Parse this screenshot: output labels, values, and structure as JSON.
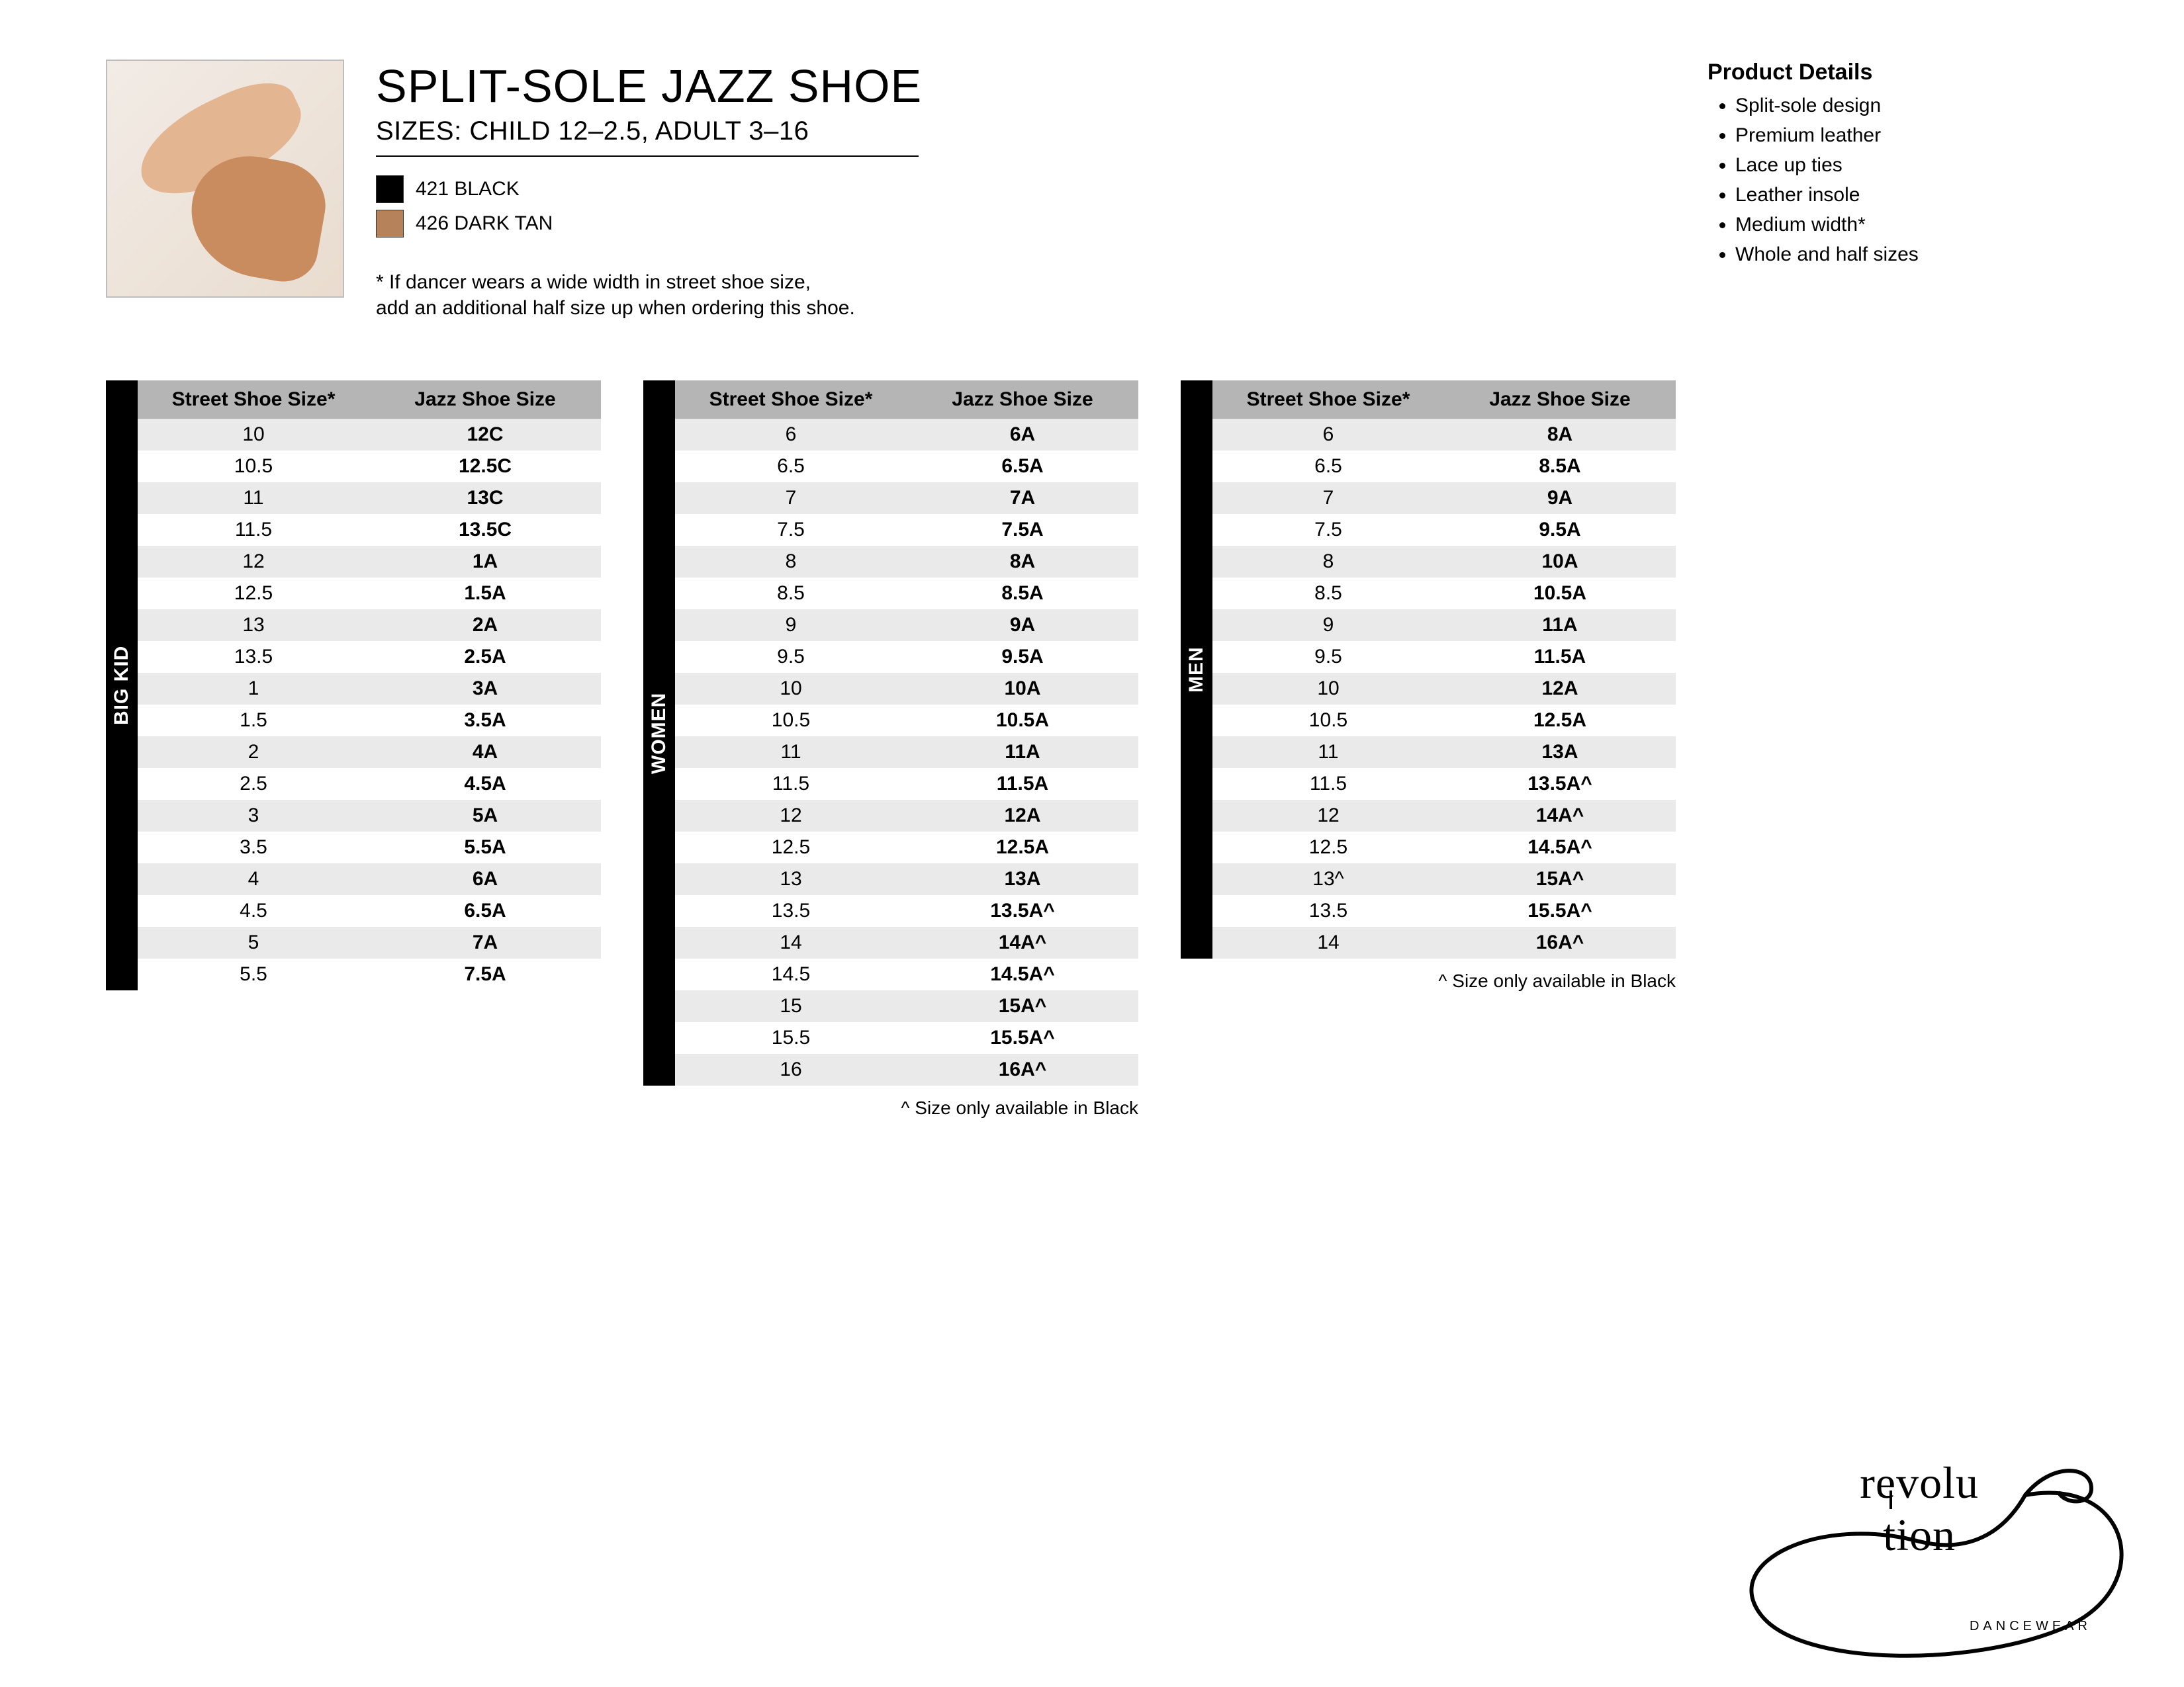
{
  "colors": {
    "black": "#000000",
    "darkTan": "#b5825a",
    "headerGrey": "#b5b5b5",
    "rowAlt": "#eaeaea",
    "rowBase": "#ffffff",
    "thumbBorder": "#bdbdbd"
  },
  "product": {
    "title": "SPLIT-SOLE JAZZ SHOE",
    "subtitle": "SIZES: CHILD 12–2.5, ADULT 3–16",
    "swatches": [
      {
        "code": "421 BLACK",
        "colorKey": "black"
      },
      {
        "code": "426 DARK TAN",
        "colorKey": "darkTan"
      }
    ],
    "footnote_l1": "* If dancer wears a wide width in street shoe size,",
    "footnote_l2": "add an additional half size up when ordering this shoe."
  },
  "details": {
    "heading": "Product Details",
    "items": [
      "Split-sole design",
      "Premium leather",
      "Lace up ties",
      "Leather insole",
      "Medium width*",
      "Whole and half sizes"
    ]
  },
  "columns": {
    "street": "Street Shoe Size*",
    "jazz": "Jazz Shoe Size"
  },
  "caretNote": "^ Size only available in Black",
  "tables": [
    {
      "label": "BIG KID",
      "rows": [
        [
          "10",
          "12C"
        ],
        [
          "10.5",
          "12.5C"
        ],
        [
          "11",
          "13C"
        ],
        [
          "11.5",
          "13.5C"
        ],
        [
          "12",
          "1A"
        ],
        [
          "12.5",
          "1.5A"
        ],
        [
          "13",
          "2A"
        ],
        [
          "13.5",
          "2.5A"
        ],
        [
          "1",
          "3A"
        ],
        [
          "1.5",
          "3.5A"
        ],
        [
          "2",
          "4A"
        ],
        [
          "2.5",
          "4.5A"
        ],
        [
          "3",
          "5A"
        ],
        [
          "3.5",
          "5.5A"
        ],
        [
          "4",
          "6A"
        ],
        [
          "4.5",
          "6.5A"
        ],
        [
          "5",
          "7A"
        ],
        [
          "5.5",
          "7.5A"
        ]
      ],
      "caret": false
    },
    {
      "label": "WOMEN",
      "rows": [
        [
          "6",
          "6A"
        ],
        [
          "6.5",
          "6.5A"
        ],
        [
          "7",
          "7A"
        ],
        [
          "7.5",
          "7.5A"
        ],
        [
          "8",
          "8A"
        ],
        [
          "8.5",
          "8.5A"
        ],
        [
          "9",
          "9A"
        ],
        [
          "9.5",
          "9.5A"
        ],
        [
          "10",
          "10A"
        ],
        [
          "10.5",
          "10.5A"
        ],
        [
          "11",
          "11A"
        ],
        [
          "11.5",
          "11.5A"
        ],
        [
          "12",
          "12A"
        ],
        [
          "12.5",
          "12.5A"
        ],
        [
          "13",
          "13A"
        ],
        [
          "13.5",
          "13.5A^"
        ],
        [
          "14",
          "14A^"
        ],
        [
          "14.5",
          "14.5A^"
        ],
        [
          "15",
          "15A^"
        ],
        [
          "15.5",
          "15.5A^"
        ],
        [
          "16",
          "16A^"
        ]
      ],
      "caret": true
    },
    {
      "label": "MEN",
      "rows": [
        [
          "6",
          "8A"
        ],
        [
          "6.5",
          "8.5A"
        ],
        [
          "7",
          "9A"
        ],
        [
          "7.5",
          "9.5A"
        ],
        [
          "8",
          "10A"
        ],
        [
          "8.5",
          "10.5A"
        ],
        [
          "9",
          "11A"
        ],
        [
          "9.5",
          "11.5A"
        ],
        [
          "10",
          "12A"
        ],
        [
          "10.5",
          "12.5A"
        ],
        [
          "11",
          "13A"
        ],
        [
          "11.5",
          "13.5A^"
        ],
        [
          "12",
          "14A^"
        ],
        [
          "12.5",
          "14.5A^"
        ],
        [
          "13^",
          "15A^"
        ],
        [
          "13.5",
          "15.5A^"
        ],
        [
          "14",
          "16A^"
        ]
      ],
      "caret": true
    }
  ],
  "brand": {
    "name_pre": "revolu",
    "name_post": "ion",
    "sub": "DANCEWEAR"
  }
}
